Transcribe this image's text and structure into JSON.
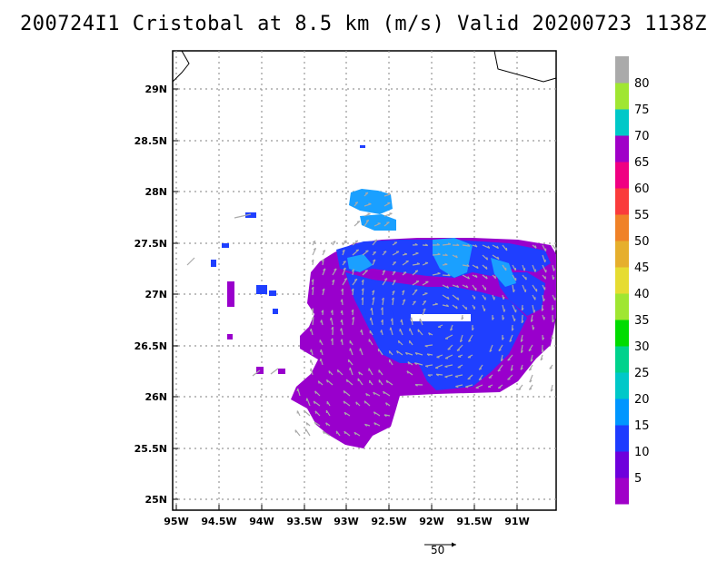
{
  "title": "200724I1 Cristobal at 8.5 km (m/s) Valid 20200723 1138Z",
  "map": {
    "lat_ticks": [
      "29N",
      "28.5N",
      "28N",
      "27.5N",
      "27N",
      "26.5N",
      "26N",
      "25.5N",
      "25N"
    ],
    "lon_ticks": [
      "95W",
      "94.5W",
      "94W",
      "93.5W",
      "93W",
      "92.5W",
      "92W",
      "91.5W",
      "91W"
    ],
    "grid": true,
    "grid_style": "dotted",
    "coastline_color": "#000000"
  },
  "colorbar": {
    "labels": [
      "5",
      "10",
      "15",
      "20",
      "25",
      "30",
      "35",
      "40",
      "45",
      "50",
      "55",
      "60",
      "65",
      "70",
      "75",
      "80"
    ],
    "colors": [
      "#a000c8",
      "#6e00dc",
      "#1e3cff",
      "#0096ff",
      "#00c8c8",
      "#00d28c",
      "#00dc00",
      "#a0e632",
      "#e6dc32",
      "#e6af2d",
      "#f08228",
      "#fa3c3c",
      "#f00082",
      "#a000c8",
      "#00c8c8",
      "#a0e632",
      "#aaaaaa"
    ]
  },
  "reference_vector": {
    "label": "50"
  },
  "field_colors": {
    "purple": "#9900cc",
    "blue": "#1f3fff",
    "lightblue": "#1aa0ff",
    "vector": "#aaaaaa"
  }
}
